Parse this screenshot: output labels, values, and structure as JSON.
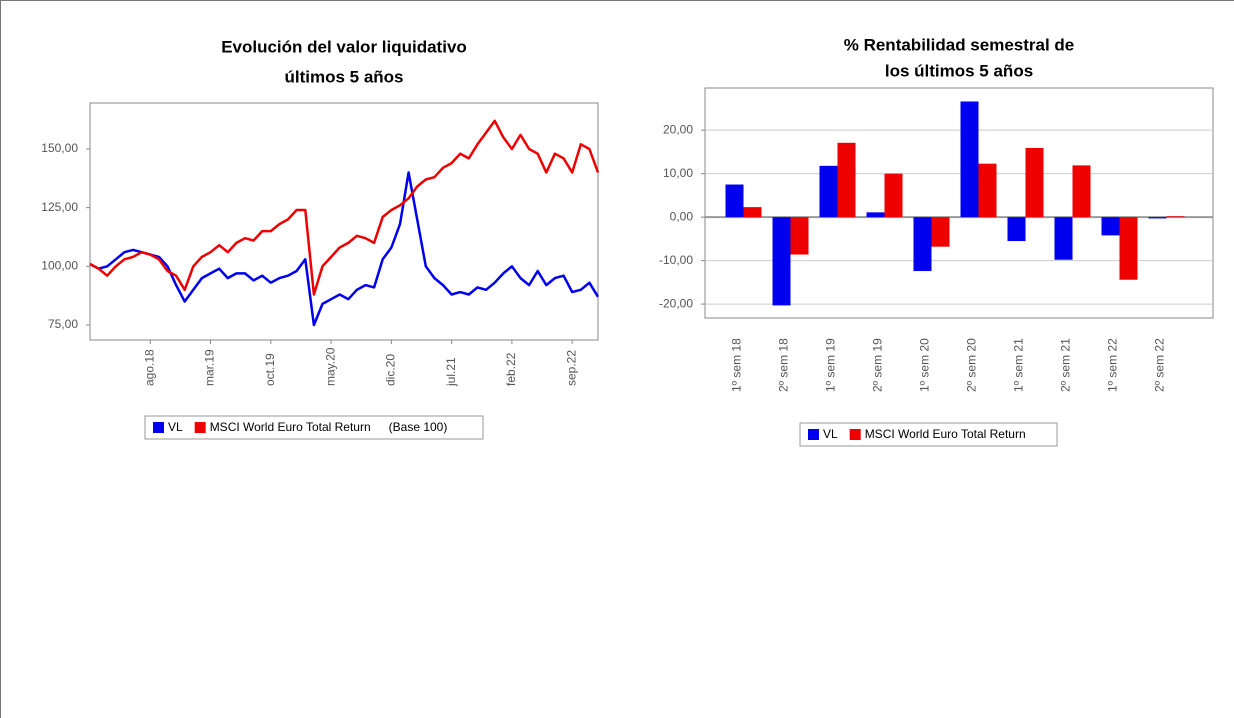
{
  "chart_data": [
    {
      "type": "line",
      "title": [
        "Evolución del valor liquidativo",
        "últimos 5 años"
      ],
      "categories": [
        null,
        null,
        null,
        null,
        null,
        null,
        null,
        "ago.18",
        null,
        null,
        null,
        null,
        null,
        null,
        "mar.19",
        null,
        null,
        null,
        null,
        null,
        null,
        "oct.19",
        null,
        null,
        null,
        null,
        null,
        null,
        "may.20",
        null,
        null,
        null,
        null,
        null,
        null,
        "dic.20",
        null,
        null,
        null,
        null,
        null,
        null,
        "jul.21",
        null,
        null,
        null,
        null,
        null,
        null,
        "feb.22",
        null,
        null,
        null,
        null,
        null,
        null,
        "sep.22",
        null,
        null,
        null
      ],
      "series": [
        {
          "name": "VL",
          "color": "#0000ee",
          "values": [
            101,
            99,
            100,
            103,
            106,
            107,
            106,
            105,
            104,
            100,
            92,
            85,
            90,
            95,
            97,
            99,
            95,
            97,
            97,
            94,
            96,
            93,
            95,
            96,
            98,
            103,
            75,
            84,
            86,
            88,
            86,
            90,
            92,
            91,
            103,
            108,
            118,
            140,
            120,
            100,
            95,
            92,
            88,
            89,
            88,
            91,
            90,
            93,
            97,
            100,
            95,
            92,
            98,
            92,
            95,
            96,
            89,
            90,
            93,
            87
          ]
        },
        {
          "name": "MSCI World Euro Total Return",
          "color": "#ee0000",
          "values": [
            101,
            99,
            96,
            100,
            103,
            104,
            106,
            105,
            103,
            98,
            96,
            90,
            100,
            104,
            106,
            109,
            106,
            110,
            112,
            111,
            115,
            115,
            118,
            120,
            124,
            124,
            88,
            100,
            104,
            108,
            110,
            113,
            112,
            110,
            121,
            124,
            126,
            129,
            134,
            137,
            138,
            142,
            144,
            148,
            146,
            152,
            157,
            162,
            155,
            150,
            156,
            150,
            148,
            140,
            148,
            146,
            140,
            152,
            150,
            140
          ]
        }
      ],
      "annotation": "(Base 100)",
      "ylim": [
        68.6,
        169.6
      ],
      "yticks": [
        {
          "value": 75,
          "label": "75,00"
        },
        {
          "value": 100,
          "label": "100,00"
        },
        {
          "value": 125,
          "label": "125,00"
        },
        {
          "value": 150,
          "label": "150,00"
        }
      ],
      "grid": false
    },
    {
      "type": "bar",
      "title": [
        "% Rentabilidad semestral de",
        "los últimos 5 años"
      ],
      "categories": [
        "1º sem 18",
        "2º sem 18",
        "1º sem 19",
        "2º sem 19",
        "1º sem 20",
        "2º sem 20",
        "1º sem 21",
        "2º sem 21",
        "1º sem 22",
        "2º sem 22"
      ],
      "series": [
        {
          "name": "VL",
          "color": "#0000ee",
          "values": [
            7.5,
            -20.3,
            11.8,
            1.1,
            -12.4,
            26.6,
            -5.5,
            -9.8,
            -4.2,
            -0.3
          ]
        },
        {
          "name": "MSCI World Euro Total Return",
          "color": "#ee0000",
          "values": [
            2.3,
            -8.6,
            17.1,
            10.0,
            -6.8,
            12.3,
            15.9,
            11.9,
            -14.4,
            0.2
          ]
        }
      ],
      "ylim": [
        -23.2,
        29.7
      ],
      "yticks": [
        {
          "value": -20,
          "label": "-20,00"
        },
        {
          "value": -10,
          "label": "-10,00"
        },
        {
          "value": 0,
          "label": "0,00"
        },
        {
          "value": 10,
          "label": "10,00"
        },
        {
          "value": 20,
          "label": "20,00"
        }
      ],
      "grid": true
    }
  ]
}
